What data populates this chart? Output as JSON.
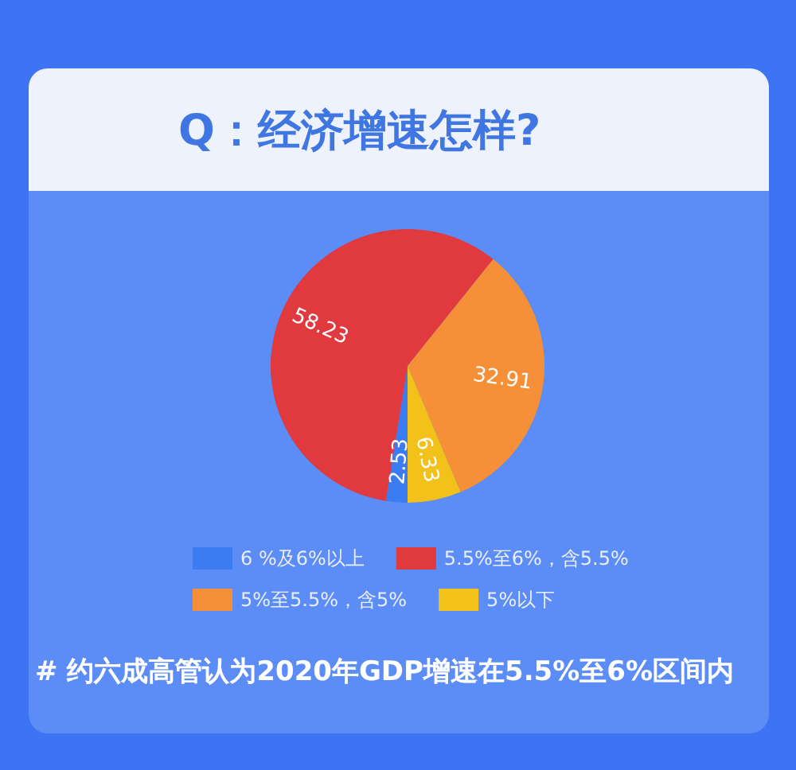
{
  "chart_data": {
    "type": "pie",
    "title": "Q：经济增速怎样?",
    "categories": [
      "6 %及6%以上",
      "5.5%至6%，含5.5%",
      "5%至5.5%，含5%",
      "5%以下"
    ],
    "values": [
      2.53,
      58.23,
      32.91,
      6.33
    ],
    "colors": [
      "#3b7cf2",
      "#e03a3e",
      "#f59038",
      "#f2c21a"
    ],
    "data_labels": true,
    "legend": "bottom",
    "annotations": [
      "# 约六成高管认为2020年GDP增速在5.5%至6%区间内"
    ]
  }
}
